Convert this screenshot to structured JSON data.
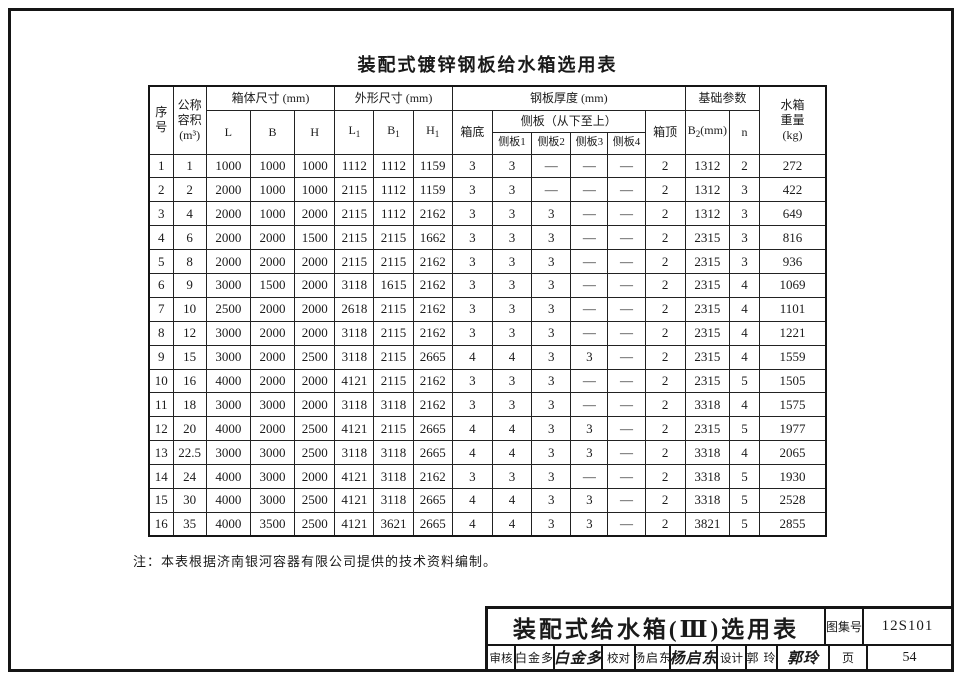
{
  "colors": {
    "ink": "#1a1a1a",
    "paper": "#ffffff"
  },
  "page": {
    "doc_title": "装配式镀锌钢板给水箱选用表",
    "note": "注：本表根据济南银河容器有限公司提供的技术资料编制。"
  },
  "table": {
    "header": {
      "seq": "序\n号",
      "volume": "公称\n容积\n(m³)",
      "body_dims": "箱体尺寸 (mm)",
      "L": "L",
      "B": "B",
      "H": "H",
      "outer_dims": "外形尺寸 (mm)",
      "L1": {
        "base": "L",
        "sub": "1"
      },
      "B1": {
        "base": "B",
        "sub": "1"
      },
      "H1": {
        "base": "H",
        "sub": "1"
      },
      "plate": "钢板厚度 (mm)",
      "bottom": "箱底",
      "side": "侧板（从下至上）",
      "sp1": "侧板1",
      "sp2": "侧板2",
      "sp3": "侧板3",
      "sp4": "侧板4",
      "top": "箱顶",
      "foundation": "基础参数",
      "B2": {
        "base": "B",
        "sub": "2",
        "suffix": "(mm)"
      },
      "n": "n",
      "weight": "水箱\n重量\n(kg)"
    },
    "rows": [
      [
        "1",
        "1",
        "1000",
        "1000",
        "1000",
        "1112",
        "1112",
        "1159",
        "3",
        "3",
        "—",
        "—",
        "—",
        "2",
        "1312",
        "2",
        "272"
      ],
      [
        "2",
        "2",
        "2000",
        "1000",
        "1000",
        "2115",
        "1112",
        "1159",
        "3",
        "3",
        "—",
        "—",
        "—",
        "2",
        "1312",
        "3",
        "422"
      ],
      [
        "3",
        "4",
        "2000",
        "1000",
        "2000",
        "2115",
        "1112",
        "2162",
        "3",
        "3",
        "3",
        "—",
        "—",
        "2",
        "1312",
        "3",
        "649"
      ],
      [
        "4",
        "6",
        "2000",
        "2000",
        "1500",
        "2115",
        "2115",
        "1662",
        "3",
        "3",
        "3",
        "—",
        "—",
        "2",
        "2315",
        "3",
        "816"
      ],
      [
        "5",
        "8",
        "2000",
        "2000",
        "2000",
        "2115",
        "2115",
        "2162",
        "3",
        "3",
        "3",
        "—",
        "—",
        "2",
        "2315",
        "3",
        "936"
      ],
      [
        "6",
        "9",
        "3000",
        "1500",
        "2000",
        "3118",
        "1615",
        "2162",
        "3",
        "3",
        "3",
        "—",
        "—",
        "2",
        "2315",
        "4",
        "1069"
      ],
      [
        "7",
        "10",
        "2500",
        "2000",
        "2000",
        "2618",
        "2115",
        "2162",
        "3",
        "3",
        "3",
        "—",
        "—",
        "2",
        "2315",
        "4",
        "1101"
      ],
      [
        "8",
        "12",
        "3000",
        "2000",
        "2000",
        "3118",
        "2115",
        "2162",
        "3",
        "3",
        "3",
        "—",
        "—",
        "2",
        "2315",
        "4",
        "1221"
      ],
      [
        "9",
        "15",
        "3000",
        "2000",
        "2500",
        "3118",
        "2115",
        "2665",
        "4",
        "4",
        "3",
        "3",
        "—",
        "2",
        "2315",
        "4",
        "1559"
      ],
      [
        "10",
        "16",
        "4000",
        "2000",
        "2000",
        "4121",
        "2115",
        "2162",
        "3",
        "3",
        "3",
        "—",
        "—",
        "2",
        "2315",
        "5",
        "1505"
      ],
      [
        "11",
        "18",
        "3000",
        "3000",
        "2000",
        "3118",
        "3118",
        "2162",
        "3",
        "3",
        "3",
        "—",
        "—",
        "2",
        "3318",
        "4",
        "1575"
      ],
      [
        "12",
        "20",
        "4000",
        "2000",
        "2500",
        "4121",
        "2115",
        "2665",
        "4",
        "4",
        "3",
        "3",
        "—",
        "2",
        "2315",
        "5",
        "1977"
      ],
      [
        "13",
        "22.5",
        "3000",
        "3000",
        "2500",
        "3118",
        "3118",
        "2665",
        "4",
        "4",
        "3",
        "3",
        "—",
        "2",
        "3318",
        "4",
        "2065"
      ],
      [
        "14",
        "24",
        "4000",
        "3000",
        "2000",
        "4121",
        "3118",
        "2162",
        "3",
        "3",
        "3",
        "—",
        "—",
        "2",
        "3318",
        "5",
        "1930"
      ],
      [
        "15",
        "30",
        "4000",
        "3000",
        "2500",
        "4121",
        "3118",
        "2665",
        "4",
        "4",
        "3",
        "3",
        "—",
        "2",
        "3318",
        "5",
        "2528"
      ],
      [
        "16",
        "35",
        "4000",
        "3500",
        "2500",
        "4121",
        "3621",
        "2665",
        "4",
        "4",
        "3",
        "3",
        "—",
        "2",
        "3821",
        "5",
        "2855"
      ]
    ]
  },
  "title_block": {
    "title": "装配式给水箱(Ⅲ)选用表",
    "atlas_label": "图集号",
    "atlas_no": "12S101",
    "page_label": "页",
    "page_no": "54",
    "review_label": "审核",
    "review_name": "白金多",
    "review_sig": "白金多",
    "proof_label": "校对",
    "proof_name": "杨启东",
    "proof_sig": "杨启东",
    "design_label": "设计",
    "design_name": "郭 玲",
    "design_sig": "郭玲"
  }
}
